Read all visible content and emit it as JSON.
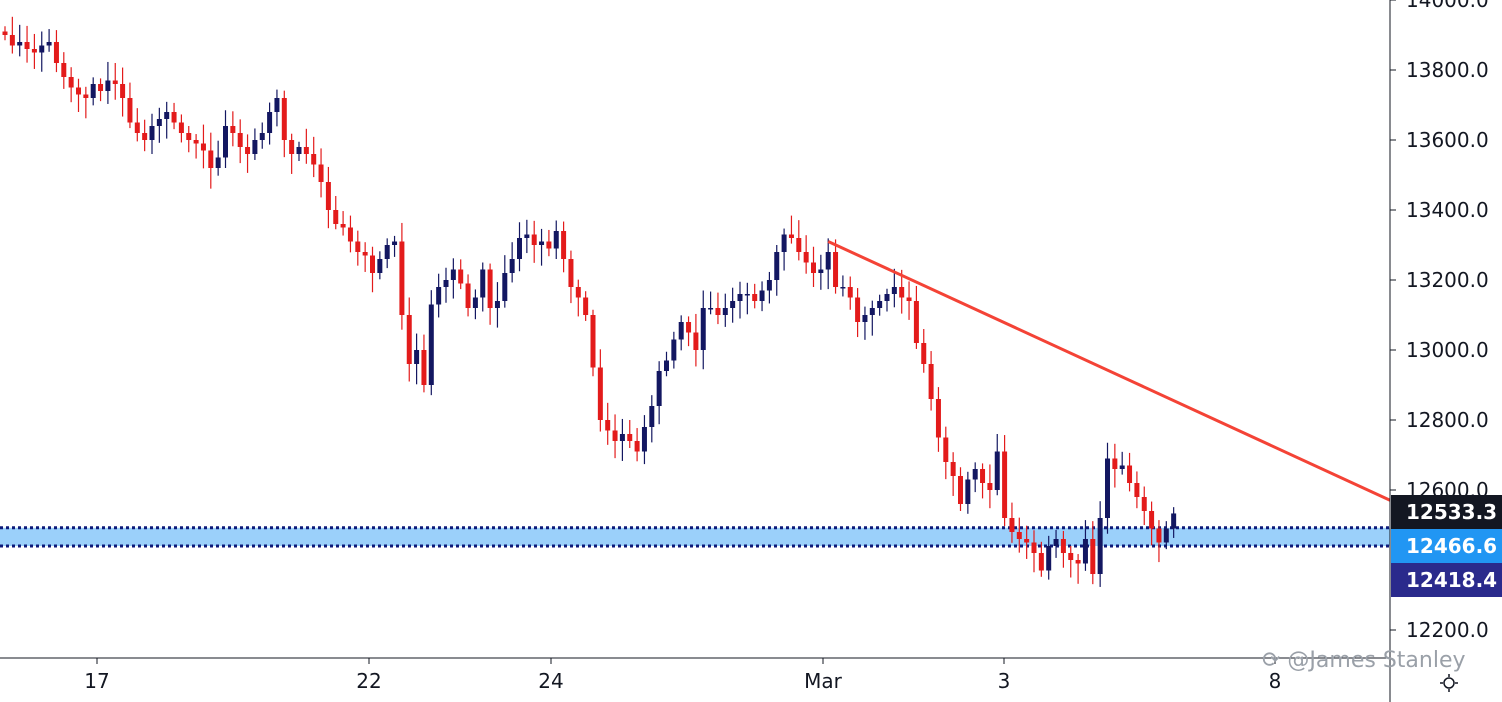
{
  "chart_data": {
    "type": "candlestick",
    "y_axis": {
      "ticks": [
        "14000.0",
        "13800.0",
        "13600.0",
        "13400.0",
        "13200.0",
        "13000.0",
        "12800.0",
        "12600.0",
        "12200.0"
      ],
      "range": [
        12000,
        14000
      ]
    },
    "x_axis": {
      "ticks": [
        "17",
        "22",
        "24",
        "Mar",
        "3",
        "8"
      ]
    },
    "price_labels": [
      {
        "value": "12533.3",
        "color": "#131722"
      },
      {
        "value": "12466.6",
        "color": "#2196f3"
      },
      {
        "value": "12418.4",
        "color": "#2a2a8c"
      }
    ],
    "support_zone": {
      "low": 12440,
      "high": 12492,
      "color": "#2196f3"
    },
    "trendline": {
      "start": {
        "bar": 112,
        "value": 13310
      },
      "end": {
        "bar": 173,
        "value": 12720
      },
      "extends_to_axis": true,
      "color": "#f44336"
    },
    "colors": {
      "up": "#131761",
      "down": "#e31b1b",
      "wick_up": "#131761",
      "wick_down": "#e31b1b"
    },
    "closes": [
      13900,
      13870,
      13880,
      13860,
      13850,
      13870,
      13880,
      13820,
      13780,
      13750,
      13730,
      13720,
      13760,
      13740,
      13770,
      13760,
      13720,
      13650,
      13620,
      13600,
      13640,
      13660,
      13680,
      13650,
      13620,
      13600,
      13590,
      13570,
      13520,
      13550,
      13640,
      13620,
      13580,
      13560,
      13600,
      13620,
      13680,
      13720,
      13600,
      13560,
      13580,
      13560,
      13530,
      13480,
      13400,
      13360,
      13350,
      13310,
      13280,
      13270,
      13220,
      13260,
      13300,
      13310,
      13100,
      12960,
      13000,
      12900,
      13130,
      13180,
      13200,
      13230,
      13190,
      13120,
      13150,
      13230,
      13120,
      13140,
      13220,
      13260,
      13320,
      13330,
      13300,
      13310,
      13290,
      13340,
      13260,
      13180,
      13150,
      13100,
      12950,
      12800,
      12770,
      12740,
      12760,
      12740,
      12710,
      12780,
      12840,
      12940,
      12970,
      13030,
      13080,
      13050,
      13000,
      13120,
      13120,
      13100,
      13120,
      13140,
      13160,
      13160,
      13140,
      13170,
      13200,
      13280,
      13330,
      13320,
      13280,
      13250,
      13220,
      13230,
      13280,
      13180,
      13180,
      13150,
      13080,
      13100,
      13120,
      13140,
      13160,
      13180,
      13150,
      13140,
      13020,
      12960,
      12860,
      12750,
      12680,
      12640,
      12560,
      12630,
      12660,
      12620,
      12600,
      12710,
      12520,
      12480,
      12460,
      12450,
      12420,
      12370,
      12440,
      12460,
      12420,
      12400,
      12390,
      12460,
      12360,
      12520,
      12690,
      12660,
      12670,
      12620,
      12580,
      12540,
      12490,
      12450,
      12490,
      12533
    ]
  }
}
